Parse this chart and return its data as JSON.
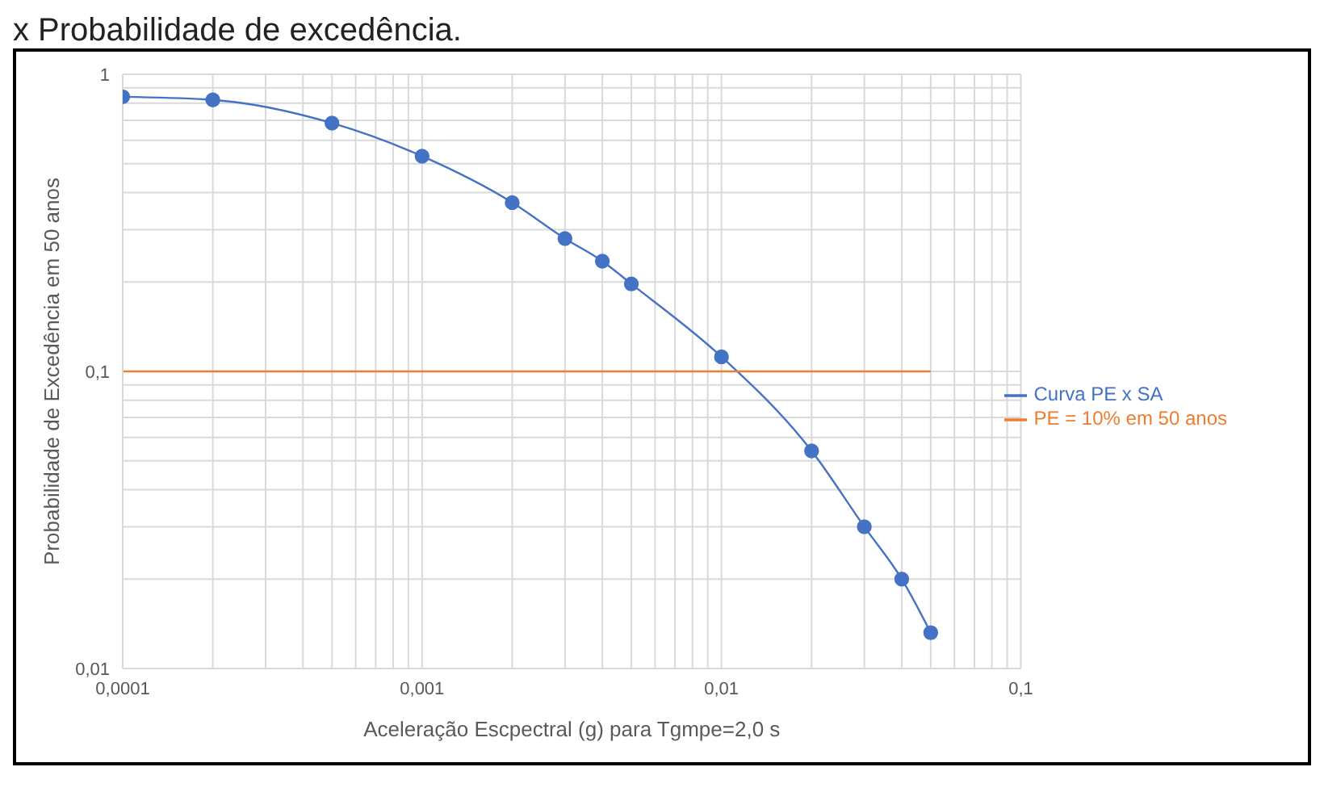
{
  "chart_data": {
    "type": "line",
    "title": "x Probabilidade de excedência.",
    "xlabel": "Aceleração Escpectral (g) para Tgmpe=2,0 s",
    "ylabel": "Probabilidade de Excedência em 50 anos",
    "log": "xy",
    "grid": true,
    "legend": "right",
    "marker": "circle",
    "line_style": "solid",
    "xlim": [
      0.0001,
      0.1
    ],
    "xticks": [
      {
        "value": 0.0001,
        "label": "0,0001"
      },
      {
        "value": 0.0002,
        "label": null
      },
      {
        "value": 0.0003,
        "label": null
      },
      {
        "value": 0.0004,
        "label": null
      },
      {
        "value": 0.0005,
        "label": null
      },
      {
        "value": 0.0006,
        "label": null
      },
      {
        "value": 0.0007,
        "label": null
      },
      {
        "value": 0.0008,
        "label": null
      },
      {
        "value": 0.0009,
        "label": null
      },
      {
        "value": 0.001,
        "label": "0,001"
      },
      {
        "value": 0.002,
        "label": null
      },
      {
        "value": 0.003,
        "label": null
      },
      {
        "value": 0.004,
        "label": null
      },
      {
        "value": 0.005,
        "label": null
      },
      {
        "value": 0.006,
        "label": null
      },
      {
        "value": 0.007,
        "label": null
      },
      {
        "value": 0.008,
        "label": null
      },
      {
        "value": 0.009,
        "label": null
      },
      {
        "value": 0.01,
        "label": "0,01"
      },
      {
        "value": 0.02,
        "label": null
      },
      {
        "value": 0.03,
        "label": null
      },
      {
        "value": 0.04,
        "label": null
      },
      {
        "value": 0.05,
        "label": null
      },
      {
        "value": 0.06,
        "label": null
      },
      {
        "value": 0.07,
        "label": null
      },
      {
        "value": 0.08,
        "label": null
      },
      {
        "value": 0.09,
        "label": null
      },
      {
        "value": 0.1,
        "label": "0,1"
      }
    ],
    "ylim": [
      0.01,
      1
    ],
    "yticks": [
      {
        "value": 0.01,
        "label": "0,01"
      },
      {
        "value": 0.02,
        "label": null
      },
      {
        "value": 0.03,
        "label": null
      },
      {
        "value": 0.04,
        "label": null
      },
      {
        "value": 0.05,
        "label": null
      },
      {
        "value": 0.06,
        "label": null
      },
      {
        "value": 0.07,
        "label": null
      },
      {
        "value": 0.08,
        "label": null
      },
      {
        "value": 0.09,
        "label": null
      },
      {
        "value": 0.1,
        "label": "0,1"
      },
      {
        "value": 0.2,
        "label": null
      },
      {
        "value": 0.3,
        "label": null
      },
      {
        "value": 0.4,
        "label": null
      },
      {
        "value": 0.5,
        "label": null
      },
      {
        "value": 0.6,
        "label": null
      },
      {
        "value": 0.7,
        "label": null
      },
      {
        "value": 0.8,
        "label": null
      },
      {
        "value": 0.9,
        "label": null
      },
      1
    ],
    "series": [
      {
        "name": "Curva PE x SA",
        "color": "#4472c4",
        "x": [
          0.0001,
          0.0002,
          0.0005,
          0.001,
          0.002,
          0.003,
          0.004,
          0.005,
          0.01,
          0.02,
          0.03,
          0.04,
          0.05
        ],
        "values": [
          0.84,
          0.82,
          0.685,
          0.53,
          0.37,
          0.28,
          0.235,
          0.197,
          0.112,
          0.054,
          0.03,
          0.02,
          0.0132
        ]
      },
      {
        "name": "PE = 10% em 50 anos",
        "color": "#ed7d31",
        "marker": "none",
        "x": [
          0.0001,
          0.05
        ],
        "values": [
          0.1,
          0.1
        ]
      }
    ]
  }
}
